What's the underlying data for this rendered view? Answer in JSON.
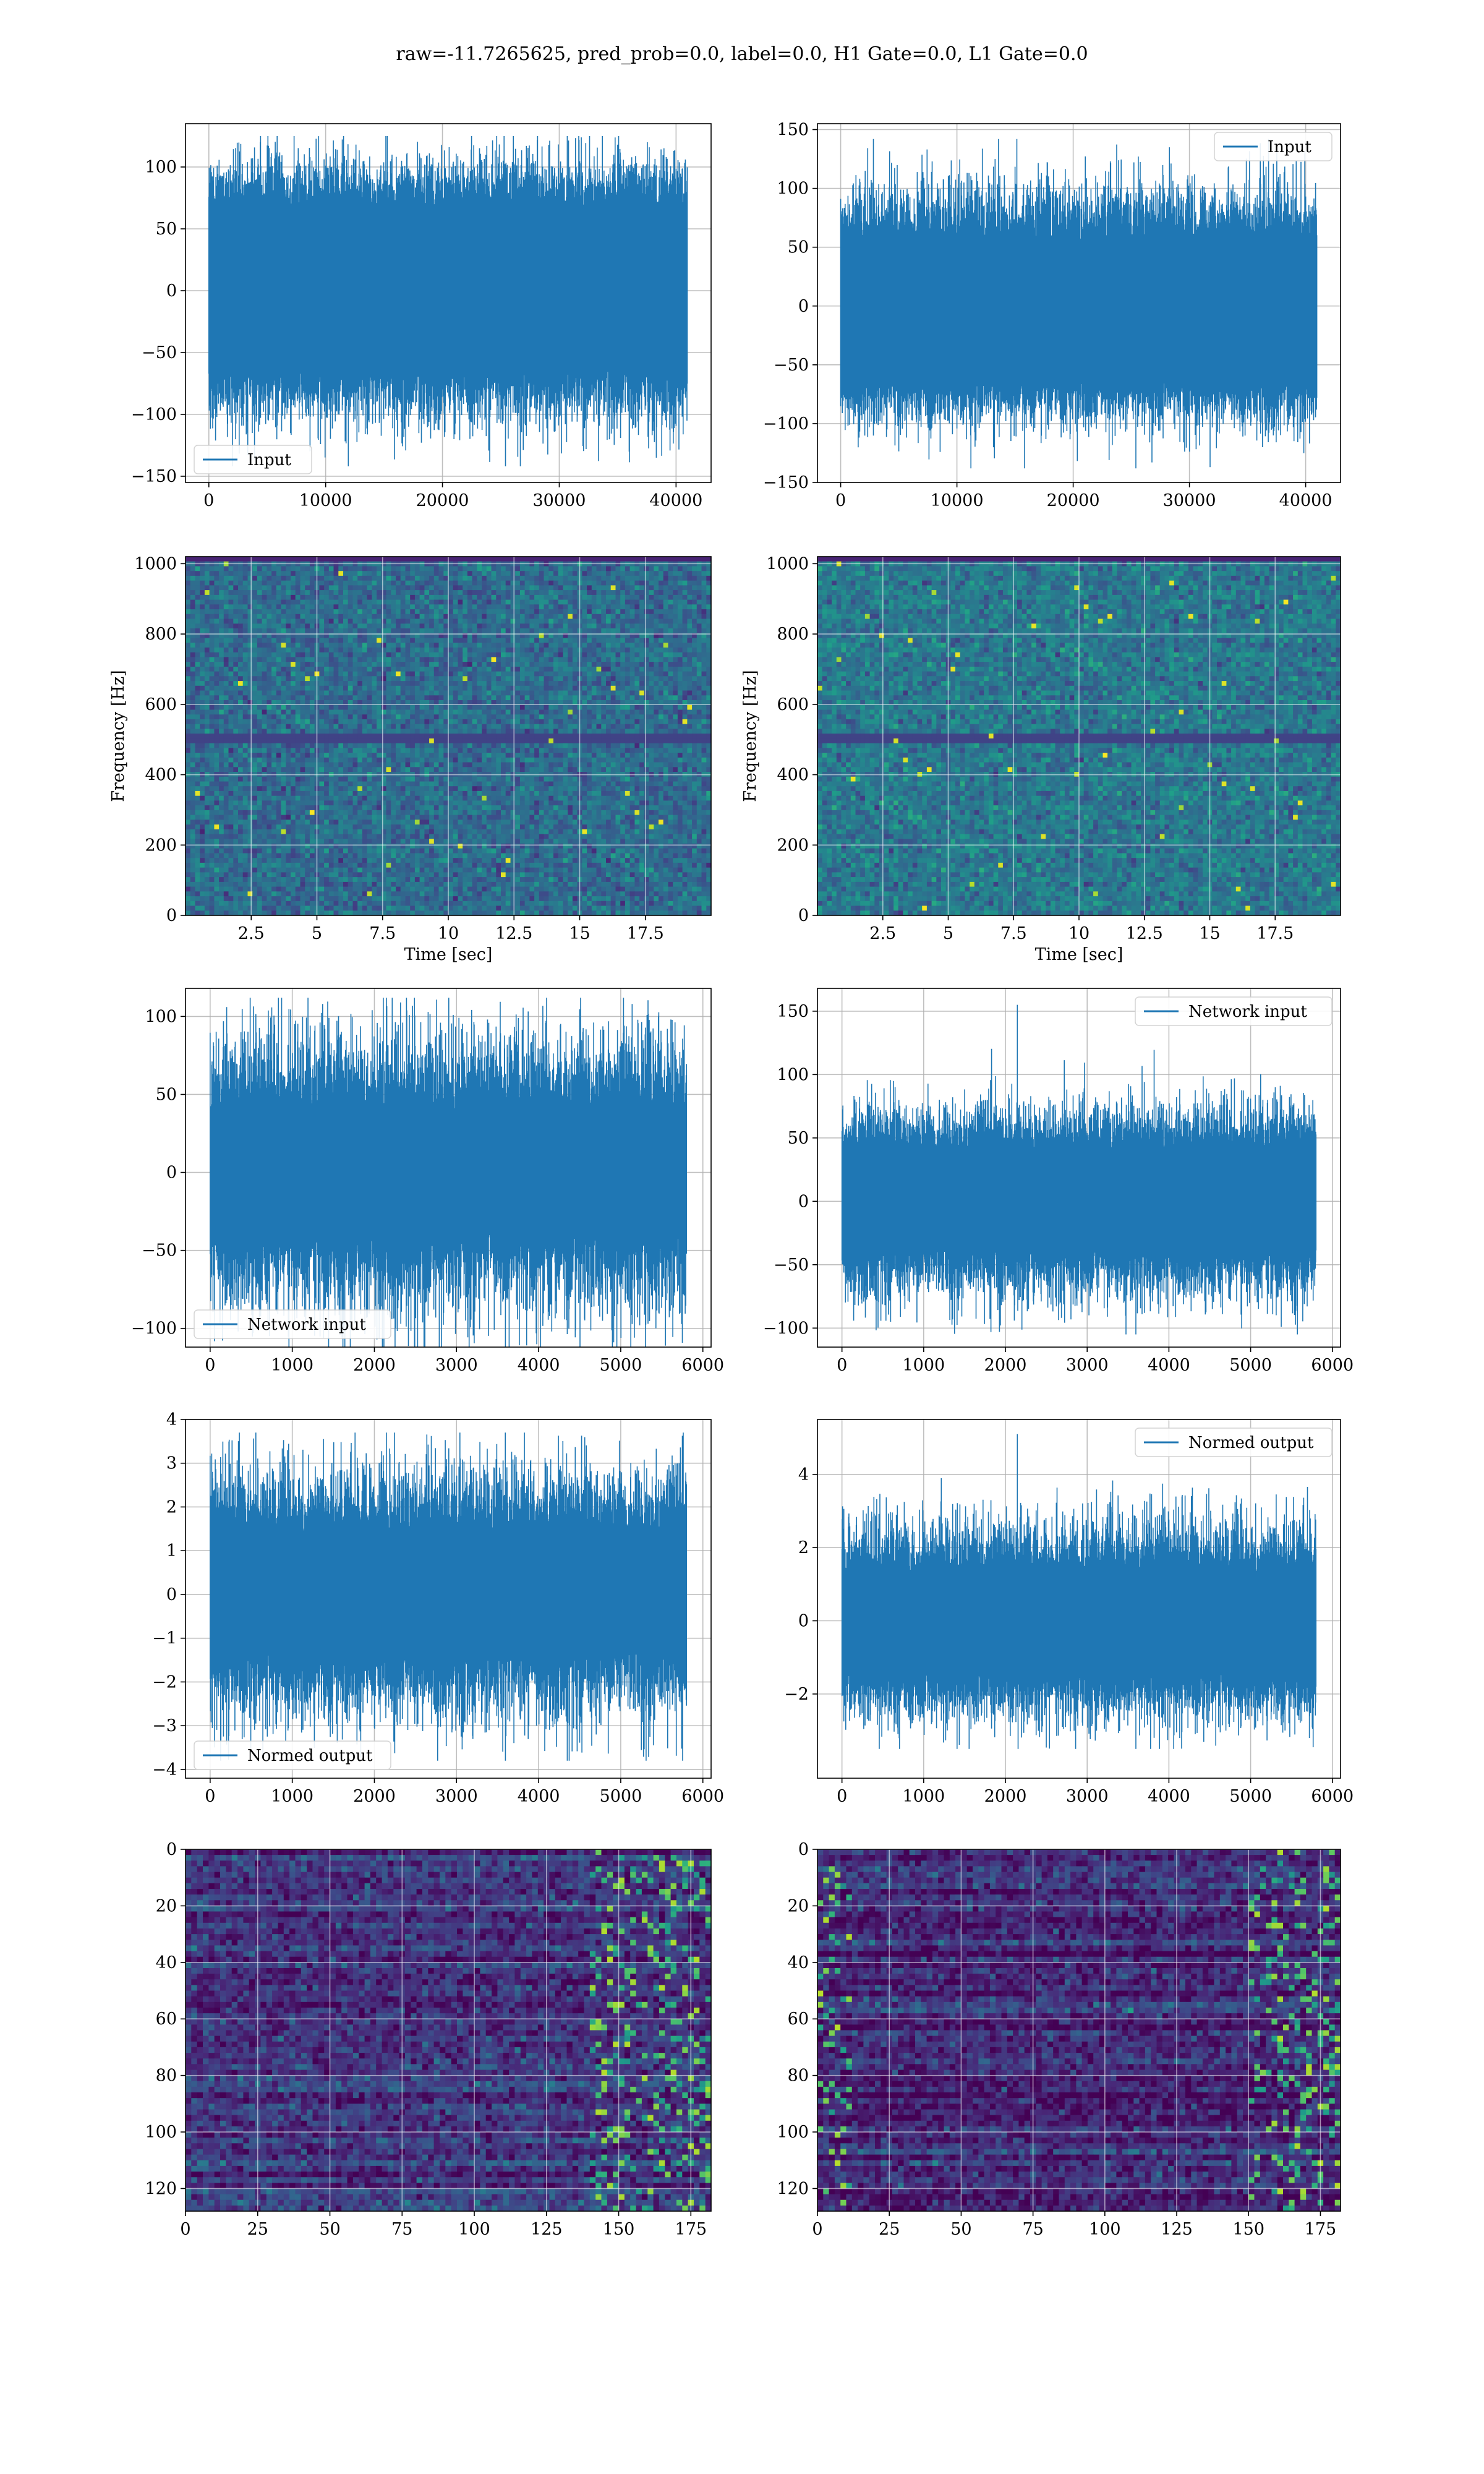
{
  "figure": {
    "suptitle": "raw=-11.7265625, pred_prob=0.0, label=0.0, H1 Gate=0.0, L1 Gate=0.0",
    "colors": {
      "line": "#1f77b4",
      "grid": "#b0b0b0",
      "viridis_low": "#440154",
      "viridis_high": "#fde725"
    }
  },
  "chart_data": [
    {
      "id": "r1c1",
      "type": "line",
      "xlim": [
        -2000,
        43000
      ],
      "ylim": [
        -155,
        135
      ],
      "xticks": [
        0,
        10000,
        20000,
        30000,
        40000
      ],
      "yticks": [
        -150,
        -100,
        -50,
        0,
        50,
        100
      ],
      "xlabel": "",
      "ylabel": "",
      "grid": true,
      "legend": "lower-left",
      "series": [
        {
          "name": "Input",
          "n_samples": 40960,
          "x_range": [
            0,
            40960
          ],
          "envelope": [
            -65,
            68
          ],
          "typical_extremes": [
            -100,
            100
          ],
          "peak_max": 125,
          "peak_min": -142
        }
      ]
    },
    {
      "id": "r1c2",
      "type": "line",
      "xlim": [
        -2000,
        43000
      ],
      "ylim": [
        -150,
        155
      ],
      "xticks": [
        0,
        10000,
        20000,
        30000,
        40000
      ],
      "yticks": [
        -150,
        -100,
        -50,
        0,
        50,
        100,
        150
      ],
      "xlabel": "",
      "ylabel": "",
      "grid": true,
      "legend": "upper-right",
      "series": [
        {
          "name": "Input",
          "n_samples": 40960,
          "x_range": [
            0,
            40960
          ],
          "envelope": [
            -63,
            55
          ],
          "typical_extremes": [
            -95,
            95
          ],
          "peak_max": 142,
          "peak_min": -138
        }
      ]
    },
    {
      "id": "r2c1",
      "type": "heatmap",
      "colormap": "viridis",
      "xlim": [
        0,
        20
      ],
      "ylim": [
        0,
        1020
      ],
      "xticks": [
        2.5,
        5.0,
        7.5,
        10.0,
        12.5,
        15.0,
        17.5
      ],
      "yticks": [
        0,
        200,
        400,
        600,
        800,
        1000
      ],
      "xlabel": "Time [sec]",
      "ylabel": "Frequency [Hz]",
      "grid": true,
      "legend": "none",
      "bands": [
        [
          490,
          520,
          0.2
        ],
        [
          1000,
          1020,
          0.1
        ]
      ],
      "base_level": 0.35
    },
    {
      "id": "r2c2",
      "type": "heatmap",
      "colormap": "viridis",
      "xlim": [
        0,
        20
      ],
      "ylim": [
        0,
        1020
      ],
      "xticks": [
        2.5,
        5.0,
        7.5,
        10.0,
        12.5,
        15.0,
        17.5
      ],
      "yticks": [
        0,
        200,
        400,
        600,
        800,
        1000
      ],
      "xlabel": "Time [sec]",
      "ylabel": "Frequency [Hz]",
      "grid": true,
      "legend": "none",
      "bands": [
        [
          490,
          520,
          0.2
        ],
        [
          1000,
          1020,
          0.1
        ]
      ],
      "base_level": 0.4
    },
    {
      "id": "r3c1",
      "type": "line",
      "xlim": [
        -300,
        6100
      ],
      "ylim": [
        -112,
        118
      ],
      "xticks": [
        0,
        1000,
        2000,
        3000,
        4000,
        5000,
        6000
      ],
      "yticks": [
        -100,
        -50,
        0,
        50,
        100
      ],
      "xlabel": "",
      "ylabel": "",
      "grid": true,
      "legend": "lower-left",
      "series": [
        {
          "name": "Network input",
          "n_samples": 5800,
          "x_range": [
            0,
            5800
          ],
          "envelope": [
            -38,
            38
          ],
          "typical_extremes": [
            -80,
            80
          ],
          "peak_max": 112,
          "peak_min": -118
        }
      ]
    },
    {
      "id": "r3c2",
      "type": "line",
      "xlim": [
        -300,
        6100
      ],
      "ylim": [
        -115,
        168
      ],
      "xticks": [
        0,
        1000,
        2000,
        3000,
        4000,
        5000,
        6000
      ],
      "yticks": [
        -100,
        -50,
        0,
        50,
        100,
        150
      ],
      "xlabel": "",
      "ylabel": "",
      "grid": true,
      "legend": "upper-right",
      "series": [
        {
          "name": "Network input",
          "n_samples": 5800,
          "x_range": [
            0,
            5800
          ],
          "envelope": [
            -38,
            40
          ],
          "typical_extremes": [
            -70,
            70
          ],
          "peak_max": 155,
          "peak_min": -105
        }
      ]
    },
    {
      "id": "r4c1",
      "type": "line",
      "xlim": [
        -300,
        6100
      ],
      "ylim": [
        -4.2,
        4.0
      ],
      "xticks": [
        0,
        1000,
        2000,
        3000,
        4000,
        5000,
        6000
      ],
      "yticks": [
        -4,
        -3,
        -2,
        -1,
        0,
        1,
        2,
        3,
        4
      ],
      "xlabel": "",
      "ylabel": "",
      "grid": true,
      "legend": "lower-left",
      "series": [
        {
          "name": "Normed output",
          "n_samples": 5800,
          "x_range": [
            0,
            5800
          ],
          "envelope": [
            -1.3,
            1.4
          ],
          "typical_extremes": [
            -2.6,
            2.6
          ],
          "peak_max": 3.7,
          "peak_min": -3.8
        }
      ]
    },
    {
      "id": "r4c2",
      "type": "line",
      "xlim": [
        -300,
        6100
      ],
      "ylim": [
        -4.3,
        5.5
      ],
      "xticks": [
        0,
        1000,
        2000,
        3000,
        4000,
        5000,
        6000
      ],
      "yticks": [
        -2,
        0,
        2,
        4
      ],
      "xlabel": "",
      "ylabel": "",
      "grid": true,
      "legend": "upper-right",
      "series": [
        {
          "name": "Normed output",
          "n_samples": 5800,
          "x_range": [
            0,
            5800
          ],
          "envelope": [
            -1.4,
            1.3
          ],
          "typical_extremes": [
            -2.5,
            2.5
          ],
          "peak_max": 5.1,
          "peak_min": -3.5
        }
      ]
    },
    {
      "id": "r5c1",
      "type": "heatmap",
      "colormap": "viridis",
      "xlim": [
        0,
        182
      ],
      "ylim": [
        128,
        0
      ],
      "xticks": [
        0,
        25,
        50,
        75,
        100,
        125,
        150,
        175
      ],
      "yticks": [
        0,
        20,
        40,
        60,
        80,
        100,
        120
      ],
      "xlabel": "",
      "ylabel": "",
      "grid": true,
      "legend": "none",
      "rows": 128,
      "cols": 182,
      "hot_region_x": [
        140,
        182
      ],
      "base_level": 0.15
    },
    {
      "id": "r5c2",
      "type": "heatmap",
      "colormap": "viridis",
      "xlim": [
        0,
        182
      ],
      "ylim": [
        128,
        0
      ],
      "xticks": [
        0,
        25,
        50,
        75,
        100,
        125,
        150,
        175
      ],
      "yticks": [
        0,
        20,
        40,
        60,
        80,
        100,
        120
      ],
      "xlabel": "",
      "ylabel": "",
      "grid": true,
      "legend": "none",
      "rows": 128,
      "cols": 182,
      "hot_region_x": [
        150,
        182
      ],
      "hot_region_left": [
        0,
        12
      ],
      "base_level": 0.12
    }
  ]
}
